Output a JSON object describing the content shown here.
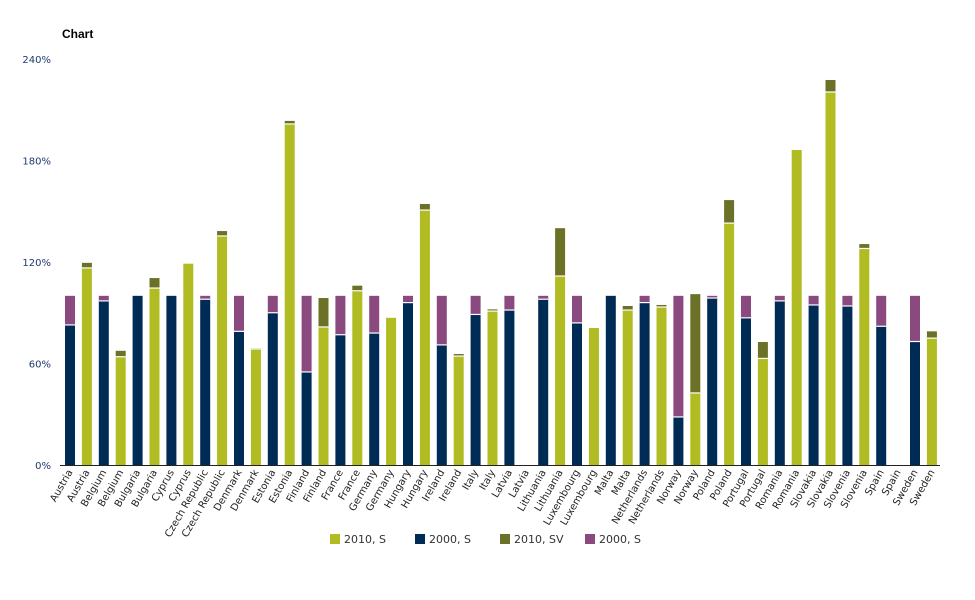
{
  "chart_data": {
    "type": "bar",
    "stacked": true,
    "title": "Chart",
    "xlabel": "",
    "ylabel": "",
    "ylim": [
      0,
      240
    ],
    "yticks": [
      "0%",
      "60%",
      "120%",
      "180%",
      "240%"
    ],
    "ytick_values": [
      0,
      60,
      120,
      180,
      240
    ],
    "grid": false,
    "legend_placement": "bottom",
    "countries": [
      "Austria",
      "Belgium",
      "Bulgaria",
      "Cyprus",
      "Czech Republic",
      "Denmark",
      "Estonia",
      "Finland",
      "France",
      "Germany",
      "Hungary",
      "Ireland",
      "Italy",
      "Latvia",
      "Lithuania",
      "Luxembourg",
      "Malta",
      "Netherlands",
      "Norway",
      "Poland",
      "Portugal",
      "Romania",
      "Slovakia",
      "Slovenia",
      "Spain",
      "Sweden"
    ],
    "colors": {
      "navy": "#002b55",
      "purple": "#8a4a80",
      "lime": "#b0bc22",
      "olive": "#6b7228",
      "grey": "#b8b8a8"
    },
    "legend": [
      {
        "label": "2010, S",
        "color": "#b0bc22"
      },
      {
        "label": "2000, S",
        "color": "#002b55"
      },
      {
        "label": "2010, SV",
        "color": "#6b7228"
      },
      {
        "label": "2000, S",
        "color": "#8a4a80"
      }
    ],
    "bar_a": {
      "navy": [
        82.8,
        97,
        100,
        100,
        98,
        79,
        90,
        55,
        77,
        78,
        96,
        71,
        89,
        91.6,
        98,
        84,
        100,
        96,
        28.4,
        98.7,
        87,
        97,
        94.6,
        94,
        82,
        73
      ],
      "purple": [
        17.2,
        3,
        0,
        0,
        2,
        21,
        10,
        45,
        23,
        22,
        4,
        29,
        11,
        8.4,
        2,
        16,
        0,
        4,
        71.6,
        1.3,
        13,
        3,
        5.4,
        6,
        18,
        27
      ]
    },
    "bar_b": {
      "lime": [
        116.5,
        64,
        104.6,
        119,
        135.4,
        68.6,
        201.6,
        81.6,
        103,
        87,
        150.7,
        64.4,
        91,
        0,
        111.7,
        81,
        91.6,
        93.4,
        42.6,
        143,
        63,
        186.2,
        220.5,
        128,
        0,
        75
      ],
      "olive": [
        3,
        3.5,
        5.9,
        0,
        2.9,
        0.4,
        1.8,
        17.1,
        3,
        0,
        3.6,
        1.2,
        1,
        0,
        28.3,
        0,
        2.4,
        1.2,
        58.4,
        13.6,
        9.7,
        0,
        7.1,
        2.6,
        0,
        4
      ]
    }
  }
}
